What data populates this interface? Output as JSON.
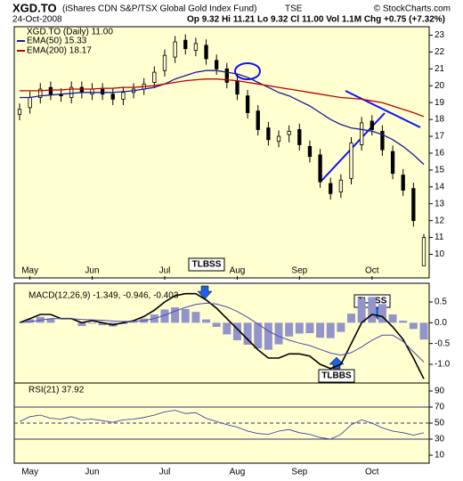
{
  "header": {
    "symbol": "XGD.TO",
    "name": "(iShares CDN S&P/TSX Global Gold Index Fund)",
    "exchange": "TSE",
    "source": "© StockCharts.com",
    "date": "24-Oct-2008",
    "quote": "Op 9.32 Hi 11.21 Lo 9.32 Cl 11.00 Vol 1.1M Chg +0.75 (+7.32%)"
  },
  "chart_data": [
    {
      "type": "candlestick",
      "price_label": "XGD.TO (Daily) 11.00",
      "color": "#000000",
      "categories": [
        null,
        "May",
        null,
        null,
        null,
        null,
        null,
        "Jun",
        null,
        null,
        null,
        null,
        null,
        null,
        "Jul",
        null,
        null,
        null,
        null,
        null,
        null,
        "Aug",
        null,
        null,
        null,
        null,
        null,
        "Sep",
        null,
        null,
        null,
        null,
        null,
        null,
        "Oct",
        null,
        null,
        null,
        null,
        null
      ],
      "open": [
        18.3,
        18.7,
        19.3,
        19.9,
        19.5,
        19.3,
        19.9,
        19.5,
        19.8,
        19.5,
        19.2,
        19.6,
        19.8,
        20.2,
        20.9,
        21.7,
        22.7,
        22.1,
        22.4,
        21.5,
        21.0,
        20.3,
        19.4,
        18.5,
        17.5,
        16.7,
        17.1,
        17.4,
        16.4,
        15.9,
        14.2,
        13.7,
        14.5,
        16.5,
        17.9,
        17.3,
        16.1,
        14.7,
        13.9,
        9.32
      ],
      "high": [
        18.95,
        19.65,
        20.15,
        20.25,
        19.85,
        20.25,
        20.25,
        20.15,
        20.15,
        19.85,
        19.95,
        20.15,
        20.45,
        21.15,
        22.15,
        22.95,
        23.05,
        22.85,
        22.75,
        21.85,
        21.35,
        20.65,
        19.75,
        18.85,
        17.85,
        17.35,
        17.65,
        17.75,
        16.75,
        16.25,
        14.55,
        14.75,
        16.95,
        18.15,
        18.25,
        17.65,
        16.45,
        15.05,
        14.25,
        11.21
      ],
      "low": [
        17.95,
        18.35,
        18.95,
        19.15,
        19.05,
        18.95,
        19.25,
        19.15,
        19.15,
        18.85,
        18.85,
        19.25,
        19.45,
        19.85,
        20.55,
        21.35,
        21.85,
        21.75,
        21.25,
        20.65,
        19.85,
        19.15,
        18.05,
        17.05,
        16.45,
        16.35,
        16.65,
        16.15,
        15.45,
        13.95,
        13.25,
        13.35,
        14.15,
        16.15,
        17.05,
        15.85,
        14.45,
        13.45,
        11.65,
        9.32
      ],
      "close": [
        18.6,
        19.3,
        19.8,
        19.5,
        19.4,
        19.9,
        19.6,
        19.8,
        19.5,
        19.2,
        19.6,
        19.8,
        20.1,
        20.8,
        21.8,
        22.6,
        22.2,
        22.5,
        21.6,
        21.0,
        20.2,
        19.5,
        18.4,
        17.4,
        16.8,
        17.0,
        17.3,
        16.5,
        15.8,
        14.3,
        13.6,
        14.4,
        16.6,
        17.8,
        17.4,
        16.2,
        14.8,
        13.8,
        12.0,
        11.0
      ],
      "series": [
        {
          "name": "EMA(50) 15.33",
          "color": "#1a1a9a",
          "values": [
            19.3,
            19.3,
            19.4,
            19.45,
            19.5,
            19.55,
            19.6,
            19.6,
            19.6,
            19.6,
            19.65,
            19.7,
            19.8,
            19.9,
            20.1,
            20.4,
            20.6,
            20.8,
            20.9,
            20.9,
            20.8,
            20.7,
            20.5,
            20.2,
            19.9,
            19.6,
            19.4,
            19.1,
            18.8,
            18.4,
            18.0,
            17.7,
            17.5,
            17.4,
            17.3,
            17.1,
            16.8,
            16.4,
            15.9,
            15.33
          ]
        },
        {
          "name": "EMA(200) 18.17",
          "color": "#c00000",
          "values": [
            19.7,
            19.7,
            19.7,
            19.75,
            19.75,
            19.8,
            19.8,
            19.8,
            19.85,
            19.85,
            19.9,
            19.9,
            19.95,
            20.0,
            20.1,
            20.2,
            20.3,
            20.35,
            20.4,
            20.4,
            20.35,
            20.3,
            20.2,
            20.1,
            20.0,
            19.9,
            19.8,
            19.7,
            19.6,
            19.5,
            19.4,
            19.3,
            19.25,
            19.2,
            19.1,
            19.0,
            18.8,
            18.6,
            18.4,
            18.17
          ]
        }
      ],
      "ylim": [
        8.6,
        23.5
      ],
      "yticks": [
        10,
        11,
        12,
        13,
        14,
        15,
        16,
        17,
        18,
        19,
        20,
        21,
        22,
        23
      ],
      "annotations": [
        "TLBSS"
      ]
    },
    {
      "type": "macd",
      "label": "MACD(12,26,9) -1.349, -0.946, -0.403",
      "series": [
        {
          "color": "#000000",
          "values": [
            0.0,
            0.1,
            0.2,
            0.2,
            0.1,
            0.1,
            0.0,
            0.05,
            0.0,
            -0.05,
            0.0,
            0.05,
            0.15,
            0.3,
            0.5,
            0.65,
            0.7,
            0.7,
            0.55,
            0.35,
            0.1,
            -0.15,
            -0.4,
            -0.65,
            -0.85,
            -0.85,
            -0.75,
            -0.75,
            -0.8,
            -1.0,
            -1.1,
            -1.0,
            -0.5,
            0.0,
            0.2,
            0.15,
            -0.1,
            -0.4,
            -0.85,
            -1.349
          ]
        },
        {
          "color": "#4a4ab0",
          "values": [
            0.0,
            0.02,
            0.06,
            0.1,
            0.1,
            0.1,
            0.08,
            0.07,
            0.06,
            0.04,
            0.03,
            0.03,
            0.05,
            0.1,
            0.18,
            0.28,
            0.37,
            0.44,
            0.47,
            0.45,
            0.38,
            0.27,
            0.13,
            -0.03,
            -0.2,
            -0.33,
            -0.42,
            -0.49,
            -0.55,
            -0.64,
            -0.73,
            -0.78,
            -0.72,
            -0.58,
            -0.42,
            -0.3,
            -0.3,
            -0.45,
            -0.7,
            -0.946
          ]
        }
      ],
      "histogram": [
        0,
        0.08,
        0.14,
        0.1,
        0,
        0,
        -0.08,
        -0.02,
        -0.06,
        -0.09,
        -0.03,
        0.02,
        0.1,
        0.2,
        0.32,
        0.37,
        0.33,
        0.26,
        0.08,
        -0.1,
        -0.28,
        -0.42,
        -0.53,
        -0.62,
        -0.65,
        -0.52,
        -0.33,
        -0.26,
        -0.25,
        -0.36,
        -0.37,
        -0.22,
        0.22,
        0.58,
        0.62,
        0.45,
        0.2,
        0.05,
        -0.15,
        -0.403
      ],
      "histogram_color": "#9494cc",
      "ylim": [
        -1.45,
        0.95
      ],
      "yticks": [
        {
          "value": 0.5,
          "label": "0.5"
        },
        {
          "value": 0,
          "label": "0.0"
        },
        {
          "value": -0.5,
          "label": "-0.5"
        },
        {
          "value": -1.0,
          "label": "-1.0"
        }
      ],
      "annotations": [
        "TLBSS",
        "TLBBS"
      ]
    },
    {
      "type": "rsi",
      "label": "RSI(21) 37.92",
      "color": "#3030a0",
      "values": [
        52,
        58,
        60,
        56,
        55,
        58,
        54,
        55,
        53,
        51,
        54,
        55,
        57,
        60,
        64,
        66,
        62,
        63,
        56,
        52,
        48,
        45,
        40,
        37,
        36,
        40,
        42,
        38,
        36,
        32,
        30,
        36,
        48,
        54,
        50,
        44,
        40,
        38,
        35,
        37.92
      ],
      "levels": [
        30,
        50,
        70
      ],
      "ylim": [
        0,
        100
      ],
      "yticks": [
        10,
        30,
        50,
        70,
        90
      ]
    }
  ]
}
